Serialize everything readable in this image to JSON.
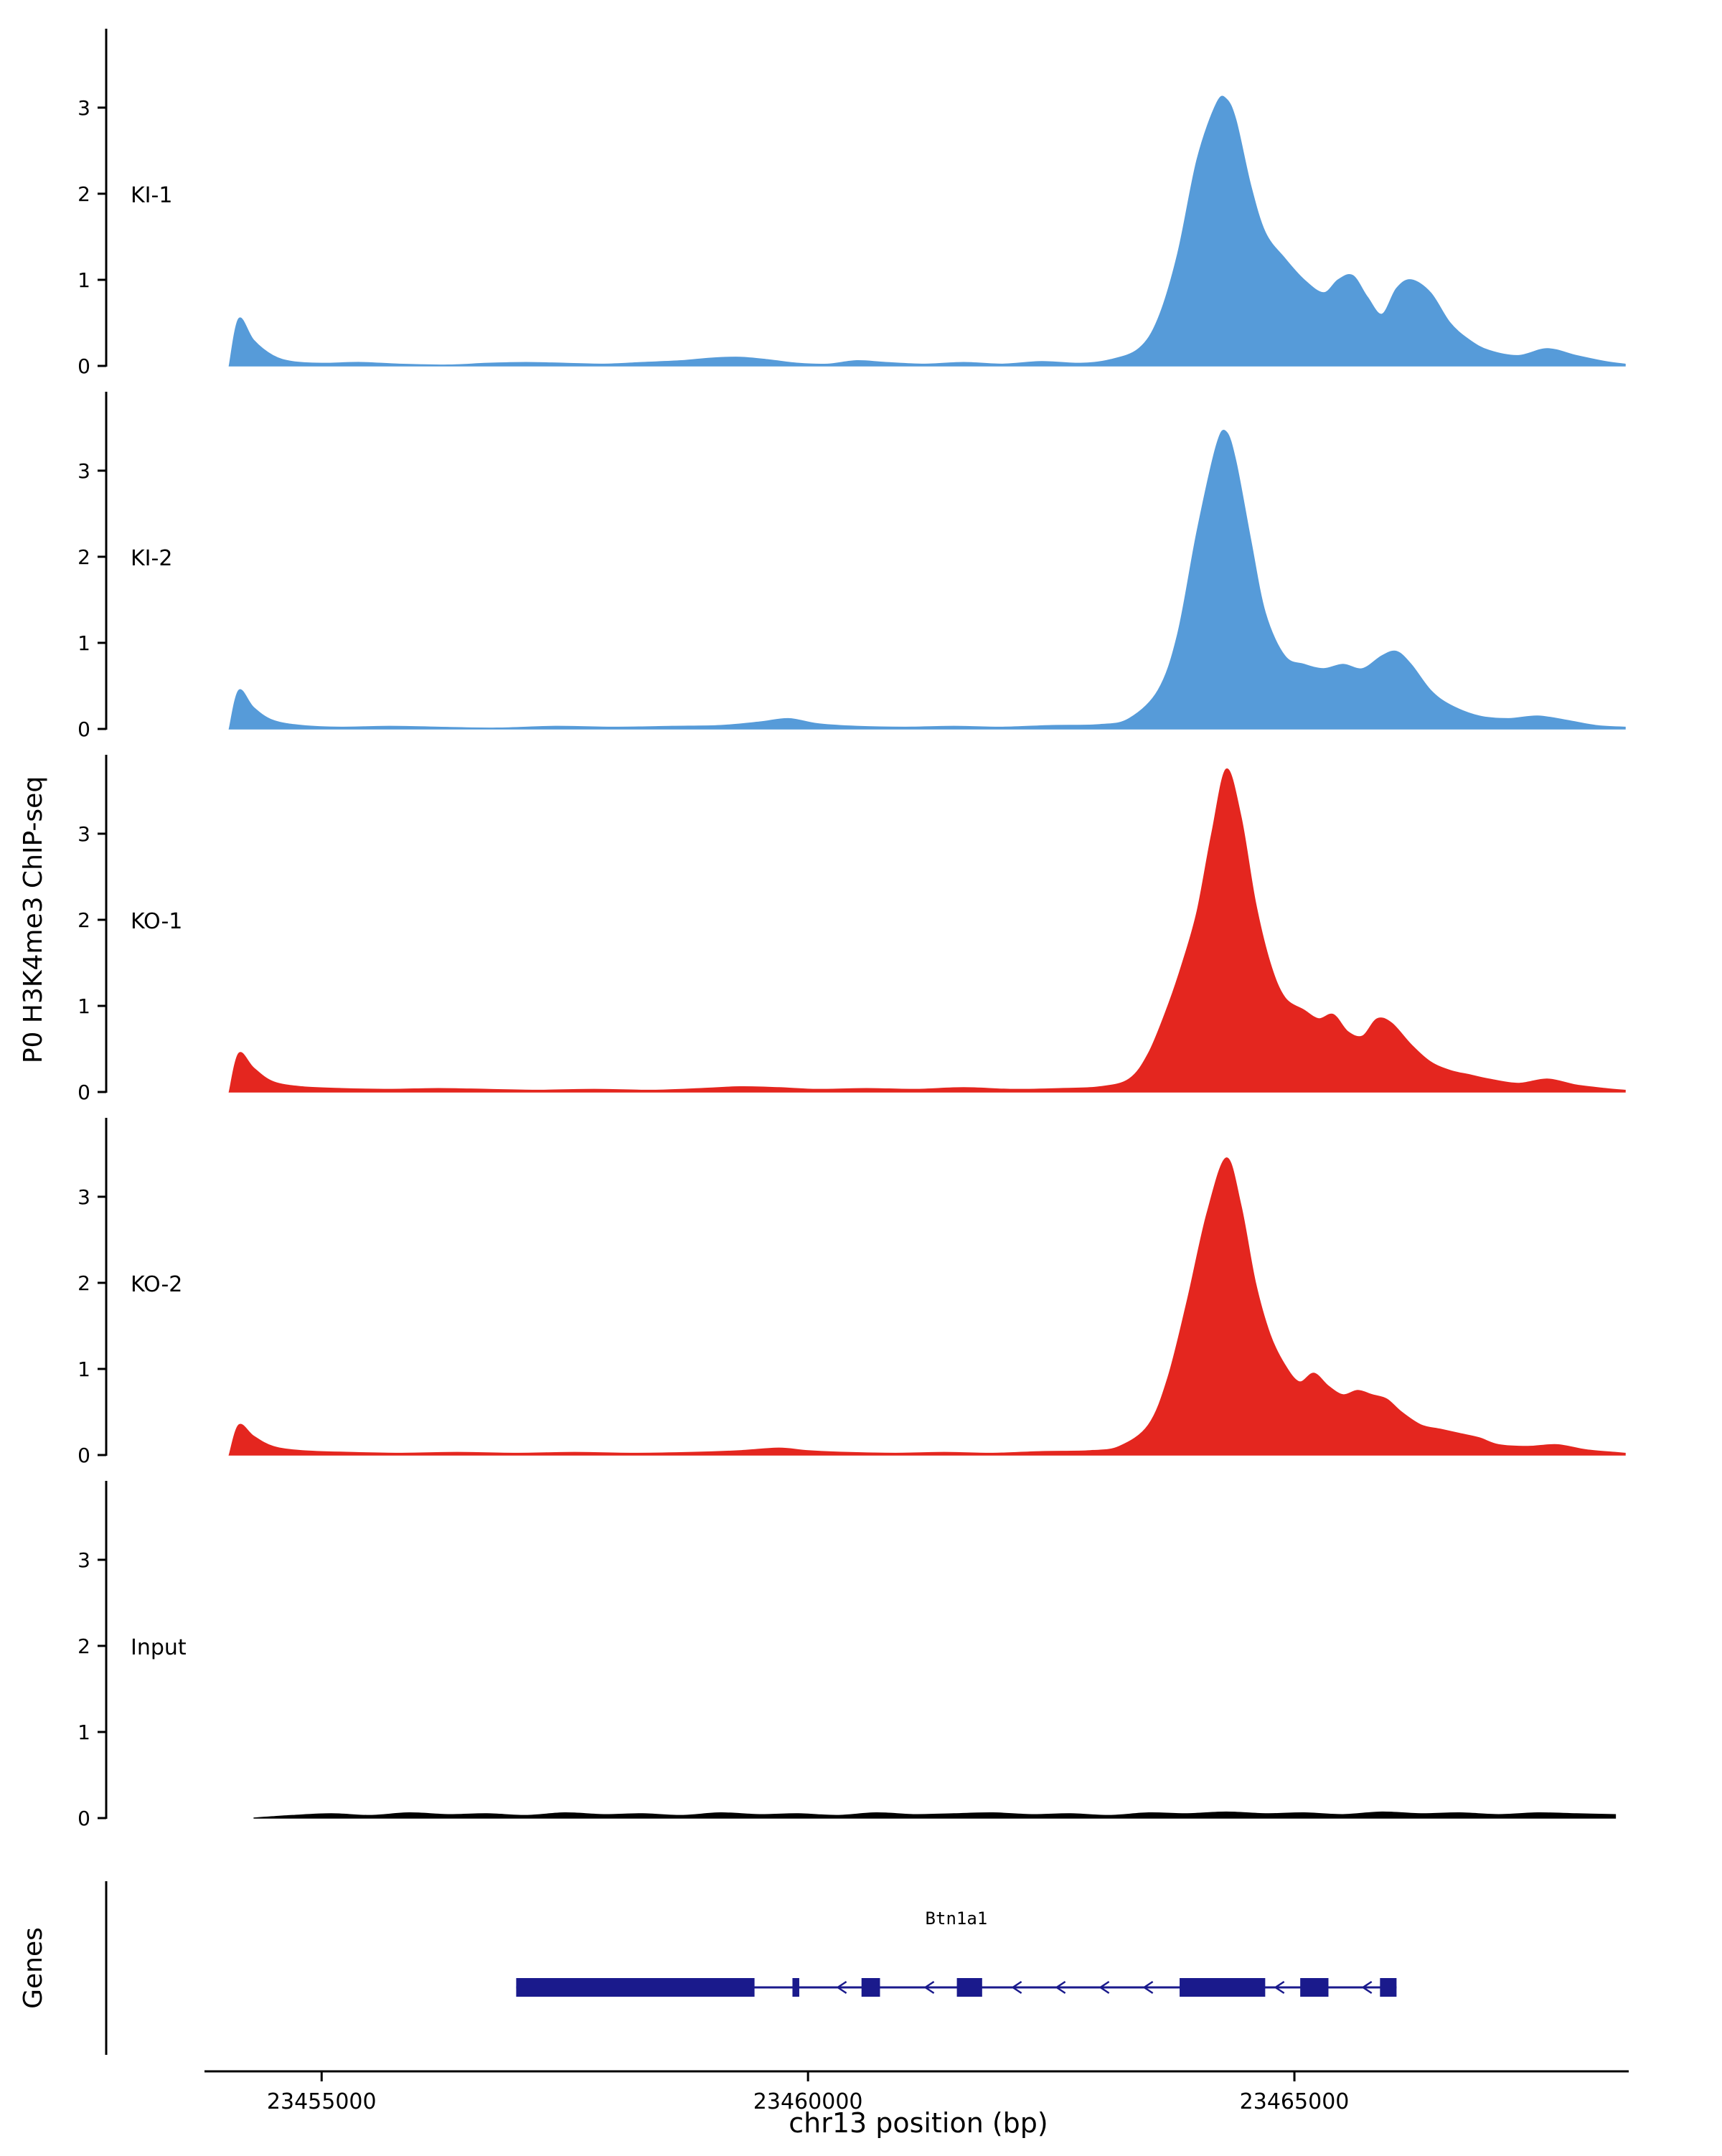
{
  "figure": {
    "ylabel": "P0 H3K4me3 ChIP-seq",
    "genes_panel_label": "Genes",
    "xlabel": "chr13 position (bp)"
  },
  "chart_data": {
    "type": "area",
    "title": "",
    "xlabel": "chr13 position (bp)",
    "ylabel": "P0 H3K4me3 ChIP-seq",
    "x_domain": [
      23452800,
      23468400
    ],
    "x_ticks": [
      23455000,
      23460000,
      23465000
    ],
    "x_tick_labels": [
      "23455000",
      "23460000",
      "23465000"
    ],
    "y_ticks": [
      0,
      1,
      2,
      3
    ],
    "y_max": 3.9,
    "legend": "none",
    "grid": false,
    "tracks": [
      {
        "name": "KI-1",
        "color": "#569BD9",
        "points": [
          [
            23454050,
            0
          ],
          [
            23454150,
            0.55
          ],
          [
            23454300,
            0.3
          ],
          [
            23454500,
            0.12
          ],
          [
            23454700,
            0.05
          ],
          [
            23455000,
            0.03
          ],
          [
            23455400,
            0.04
          ],
          [
            23455800,
            0.02
          ],
          [
            23456300,
            0.01
          ],
          [
            23456700,
            0.03
          ],
          [
            23457100,
            0.04
          ],
          [
            23457500,
            0.03
          ],
          [
            23457900,
            0.02
          ],
          [
            23458300,
            0.04
          ],
          [
            23458700,
            0.06
          ],
          [
            23459000,
            0.09
          ],
          [
            23459300,
            0.1
          ],
          [
            23459600,
            0.07
          ],
          [
            23459900,
            0.03
          ],
          [
            23460200,
            0.02
          ],
          [
            23460500,
            0.06
          ],
          [
            23460800,
            0.04
          ],
          [
            23461200,
            0.02
          ],
          [
            23461600,
            0.04
          ],
          [
            23462000,
            0.02
          ],
          [
            23462400,
            0.05
          ],
          [
            23462800,
            0.03
          ],
          [
            23463100,
            0.07
          ],
          [
            23463400,
            0.2
          ],
          [
            23463600,
            0.55
          ],
          [
            23463800,
            1.3
          ],
          [
            23464000,
            2.4
          ],
          [
            23464200,
            3.05
          ],
          [
            23464300,
            3.1
          ],
          [
            23464400,
            2.85
          ],
          [
            23464550,
            2.1
          ],
          [
            23464700,
            1.55
          ],
          [
            23464900,
            1.25
          ],
          [
            23465100,
            1.0
          ],
          [
            23465300,
            0.85
          ],
          [
            23465450,
            1.0
          ],
          [
            23465600,
            1.05
          ],
          [
            23465750,
            0.8
          ],
          [
            23465900,
            0.6
          ],
          [
            23466050,
            0.9
          ],
          [
            23466200,
            1.0
          ],
          [
            23466400,
            0.85
          ],
          [
            23466600,
            0.5
          ],
          [
            23466800,
            0.3
          ],
          [
            23467000,
            0.18
          ],
          [
            23467300,
            0.12
          ],
          [
            23467600,
            0.2
          ],
          [
            23467900,
            0.12
          ],
          [
            23468200,
            0.05
          ],
          [
            23468400,
            0.02
          ]
        ]
      },
      {
        "name": "KI-2",
        "color": "#569BD9",
        "points": [
          [
            23454050,
            0
          ],
          [
            23454150,
            0.45
          ],
          [
            23454300,
            0.25
          ],
          [
            23454500,
            0.1
          ],
          [
            23454800,
            0.04
          ],
          [
            23455200,
            0.02
          ],
          [
            23455700,
            0.03
          ],
          [
            23456200,
            0.02
          ],
          [
            23456800,
            0.01
          ],
          [
            23457400,
            0.03
          ],
          [
            23458000,
            0.02
          ],
          [
            23458600,
            0.03
          ],
          [
            23459100,
            0.04
          ],
          [
            23459500,
            0.08
          ],
          [
            23459800,
            0.12
          ],
          [
            23460100,
            0.06
          ],
          [
            23460500,
            0.03
          ],
          [
            23461000,
            0.02
          ],
          [
            23461500,
            0.03
          ],
          [
            23462000,
            0.02
          ],
          [
            23462500,
            0.04
          ],
          [
            23463000,
            0.05
          ],
          [
            23463300,
            0.12
          ],
          [
            23463600,
            0.45
          ],
          [
            23463800,
            1.1
          ],
          [
            23464000,
            2.3
          ],
          [
            23464200,
            3.3
          ],
          [
            23464300,
            3.45
          ],
          [
            23464400,
            3.1
          ],
          [
            23464550,
            2.2
          ],
          [
            23464700,
            1.35
          ],
          [
            23464900,
            0.85
          ],
          [
            23465100,
            0.75
          ],
          [
            23465300,
            0.7
          ],
          [
            23465500,
            0.75
          ],
          [
            23465700,
            0.7
          ],
          [
            23465900,
            0.85
          ],
          [
            23466050,
            0.9
          ],
          [
            23466200,
            0.75
          ],
          [
            23466400,
            0.45
          ],
          [
            23466600,
            0.28
          ],
          [
            23466900,
            0.15
          ],
          [
            23467200,
            0.12
          ],
          [
            23467500,
            0.15
          ],
          [
            23467800,
            0.1
          ],
          [
            23468100,
            0.04
          ],
          [
            23468400,
            0.02
          ]
        ]
      },
      {
        "name": "KO-1",
        "color": "#E4261F",
        "points": [
          [
            23454050,
            0
          ],
          [
            23454150,
            0.45
          ],
          [
            23454300,
            0.28
          ],
          [
            23454500,
            0.12
          ],
          [
            23454800,
            0.06
          ],
          [
            23455200,
            0.04
          ],
          [
            23455700,
            0.03
          ],
          [
            23456200,
            0.04
          ],
          [
            23456700,
            0.03
          ],
          [
            23457200,
            0.02
          ],
          [
            23457800,
            0.03
          ],
          [
            23458400,
            0.02
          ],
          [
            23458900,
            0.04
          ],
          [
            23459300,
            0.06
          ],
          [
            23459700,
            0.05
          ],
          [
            23460100,
            0.03
          ],
          [
            23460600,
            0.04
          ],
          [
            23461100,
            0.03
          ],
          [
            23461600,
            0.05
          ],
          [
            23462100,
            0.03
          ],
          [
            23462600,
            0.04
          ],
          [
            23463000,
            0.06
          ],
          [
            23463300,
            0.15
          ],
          [
            23463500,
            0.45
          ],
          [
            23463700,
            1.0
          ],
          [
            23463850,
            1.5
          ],
          [
            23464000,
            2.1
          ],
          [
            23464150,
            3.0
          ],
          [
            23464300,
            3.75
          ],
          [
            23464450,
            3.2
          ],
          [
            23464600,
            2.2
          ],
          [
            23464750,
            1.5
          ],
          [
            23464900,
            1.1
          ],
          [
            23465100,
            0.95
          ],
          [
            23465250,
            0.85
          ],
          [
            23465400,
            0.9
          ],
          [
            23465550,
            0.7
          ],
          [
            23465700,
            0.65
          ],
          [
            23465850,
            0.85
          ],
          [
            23466000,
            0.8
          ],
          [
            23466200,
            0.55
          ],
          [
            23466400,
            0.35
          ],
          [
            23466600,
            0.25
          ],
          [
            23466800,
            0.2
          ],
          [
            23467000,
            0.15
          ],
          [
            23467300,
            0.1
          ],
          [
            23467600,
            0.15
          ],
          [
            23467900,
            0.08
          ],
          [
            23468200,
            0.04
          ],
          [
            23468400,
            0.02
          ]
        ]
      },
      {
        "name": "KO-2",
        "color": "#E4261F",
        "points": [
          [
            23454050,
            0
          ],
          [
            23454150,
            0.35
          ],
          [
            23454300,
            0.22
          ],
          [
            23454500,
            0.1
          ],
          [
            23454800,
            0.05
          ],
          [
            23455300,
            0.03
          ],
          [
            23455800,
            0.02
          ],
          [
            23456400,
            0.03
          ],
          [
            23457000,
            0.02
          ],
          [
            23457600,
            0.03
          ],
          [
            23458200,
            0.02
          ],
          [
            23458800,
            0.03
          ],
          [
            23459300,
            0.05
          ],
          [
            23459700,
            0.08
          ],
          [
            23460000,
            0.05
          ],
          [
            23460400,
            0.03
          ],
          [
            23460900,
            0.02
          ],
          [
            23461400,
            0.03
          ],
          [
            23461900,
            0.02
          ],
          [
            23462400,
            0.04
          ],
          [
            23462900,
            0.05
          ],
          [
            23463200,
            0.1
          ],
          [
            23463500,
            0.35
          ],
          [
            23463700,
            0.9
          ],
          [
            23463900,
            1.8
          ],
          [
            23464100,
            2.8
          ],
          [
            23464300,
            3.45
          ],
          [
            23464450,
            2.9
          ],
          [
            23464600,
            2.0
          ],
          [
            23464750,
            1.4
          ],
          [
            23464900,
            1.05
          ],
          [
            23465050,
            0.85
          ],
          [
            23465200,
            0.95
          ],
          [
            23465350,
            0.8
          ],
          [
            23465500,
            0.7
          ],
          [
            23465650,
            0.75
          ],
          [
            23465800,
            0.7
          ],
          [
            23465950,
            0.65
          ],
          [
            23466100,
            0.5
          ],
          [
            23466300,
            0.35
          ],
          [
            23466500,
            0.3
          ],
          [
            23466700,
            0.25
          ],
          [
            23466900,
            0.2
          ],
          [
            23467100,
            0.12
          ],
          [
            23467400,
            0.1
          ],
          [
            23467700,
            0.12
          ],
          [
            23468000,
            0.06
          ],
          [
            23468300,
            0.03
          ],
          [
            23468400,
            0.02
          ]
        ]
      },
      {
        "name": "Input",
        "color": "#000000",
        "points": [
          [
            23454300,
            0
          ],
          [
            23454700,
            0.03
          ],
          [
            23455100,
            0.05
          ],
          [
            23455500,
            0.03
          ],
          [
            23455900,
            0.06
          ],
          [
            23456300,
            0.04
          ],
          [
            23456700,
            0.05
          ],
          [
            23457100,
            0.03
          ],
          [
            23457500,
            0.06
          ],
          [
            23457900,
            0.04
          ],
          [
            23458300,
            0.05
          ],
          [
            23458700,
            0.03
          ],
          [
            23459100,
            0.06
          ],
          [
            23459500,
            0.04
          ],
          [
            23459900,
            0.05
          ],
          [
            23460300,
            0.03
          ],
          [
            23460700,
            0.06
          ],
          [
            23461100,
            0.04
          ],
          [
            23461500,
            0.05
          ],
          [
            23461900,
            0.06
          ],
          [
            23462300,
            0.04
          ],
          [
            23462700,
            0.05
          ],
          [
            23463100,
            0.03
          ],
          [
            23463500,
            0.06
          ],
          [
            23463900,
            0.05
          ],
          [
            23464300,
            0.07
          ],
          [
            23464700,
            0.05
          ],
          [
            23465100,
            0.06
          ],
          [
            23465500,
            0.04
          ],
          [
            23465900,
            0.07
          ],
          [
            23466300,
            0.05
          ],
          [
            23466700,
            0.06
          ],
          [
            23467100,
            0.04
          ],
          [
            23467500,
            0.06
          ],
          [
            23467900,
            0.05
          ],
          [
            23468300,
            0.04
          ]
        ]
      }
    ],
    "genes": {
      "panel_label": "Genes",
      "gene": {
        "name": "Btn1a1",
        "strand": "-",
        "start": 23457000,
        "end": 23466050,
        "color": "#1A1A8C",
        "exons": [
          [
            23457000,
            23459450
          ],
          [
            23459840,
            23459910
          ],
          [
            23460550,
            23460740
          ],
          [
            23461530,
            23461790
          ],
          [
            23463820,
            23464700
          ],
          [
            23465060,
            23465350
          ],
          [
            23465880,
            23466050
          ]
        ]
      }
    }
  }
}
